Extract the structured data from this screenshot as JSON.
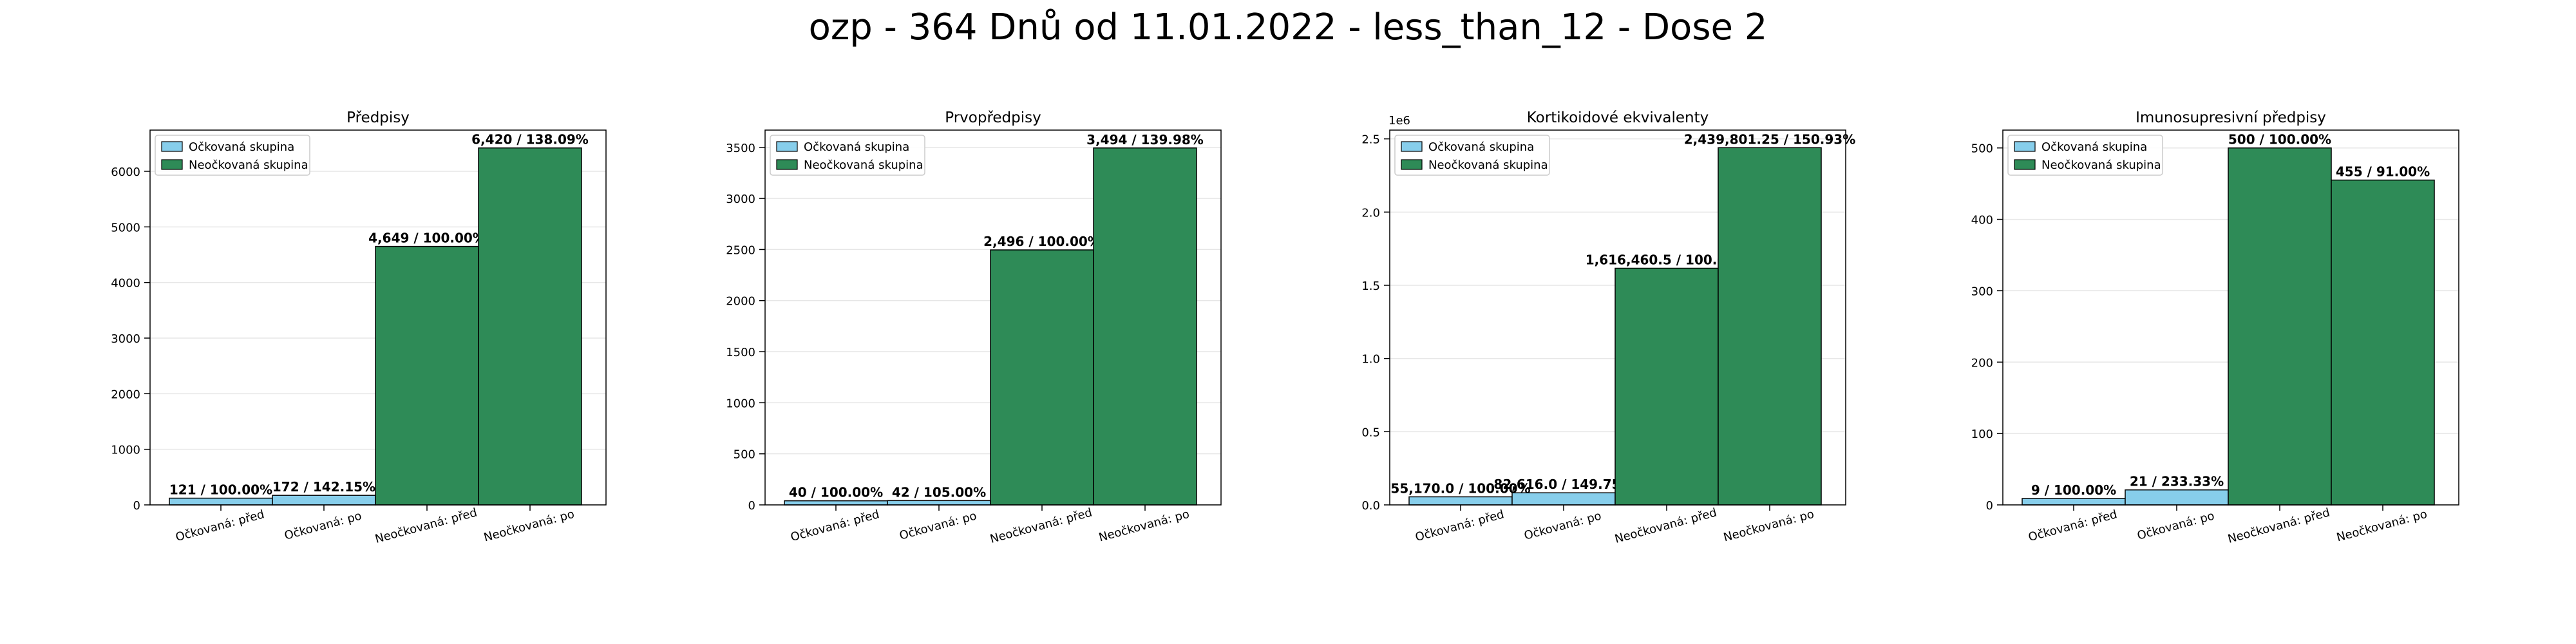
{
  "title": "ozp - 364 Dnů od 11.01.2022 - less_than_12 - Dose 2",
  "colors": {
    "vaccinated": "#87CEEB",
    "unvaccinated": "#2E8B57",
    "edge": "#000000",
    "grid": "#e6e6e6"
  },
  "chart_data": [
    {
      "type": "bar",
      "title": "Předpisy",
      "categories": [
        "Očkovaná: před",
        "Očkovaná: po",
        "Neočkovaná: před",
        "Neočkovaná: po"
      ],
      "values": [
        121,
        172,
        4649,
        6420
      ],
      "labels": [
        "121 / 100.00%",
        "172 / 142.15%",
        "4,649 / 100.00%",
        "6,420 / 138.09%"
      ],
      "groups": [
        "vaccinated",
        "vaccinated",
        "unvaccinated",
        "unvaccinated"
      ],
      "ylim": [
        0,
        6741
      ],
      "yticks": [
        0,
        1000,
        2000,
        3000,
        4000,
        5000,
        6000
      ],
      "yticklabels": [
        "0",
        "1000",
        "2000",
        "3000",
        "4000",
        "5000",
        "6000"
      ],
      "scale_label": "",
      "legend": [
        "Očkovaná skupina",
        "Neočkovaná skupina"
      ],
      "legend_position": "top-left",
      "grid": true
    },
    {
      "type": "bar",
      "title": "Prvopředpisy",
      "categories": [
        "Očkovaná: před",
        "Očkovaná: po",
        "Neočkovaná: před",
        "Neočkovaná: po"
      ],
      "values": [
        40,
        42,
        2496,
        3494
      ],
      "labels": [
        "40 / 100.00%",
        "42 / 105.00%",
        "2,496 / 100.00%",
        "3,494 / 139.98%"
      ],
      "groups": [
        "vaccinated",
        "vaccinated",
        "unvaccinated",
        "unvaccinated"
      ],
      "ylim": [
        0,
        3669
      ],
      "yticks": [
        0,
        500,
        1000,
        1500,
        2000,
        2500,
        3000,
        3500
      ],
      "yticklabels": [
        "0",
        "500",
        "1000",
        "1500",
        "2000",
        "2500",
        "3000",
        "3500"
      ],
      "scale_label": "",
      "legend": [
        "Očkovaná skupina",
        "Neočkovaná skupina"
      ],
      "legend_position": "top-left",
      "grid": true
    },
    {
      "type": "bar",
      "title": "Kortikoidové ekvivalenty",
      "categories": [
        "Očkovaná: před",
        "Očkovaná: po",
        "Neočkovaná: před",
        "Neočkovaná: po"
      ],
      "values": [
        55170.0,
        82616.0,
        1616460.5,
        2439801.25
      ],
      "labels": [
        "55,170.0 / 100.00%",
        "82,616.0 / 149.75%",
        "1,616,460.5 / 100.00%",
        "2,439,801.25 / 150.93%"
      ],
      "groups": [
        "vaccinated",
        "vaccinated",
        "unvaccinated",
        "unvaccinated"
      ],
      "ylim": [
        0,
        2560000
      ],
      "yticks": [
        0,
        500000,
        1000000,
        1500000,
        2000000,
        2500000
      ],
      "yticklabels": [
        "0.0",
        "0.5",
        "1.0",
        "1.5",
        "2.0",
        "2.5"
      ],
      "scale_label": "1e6",
      "legend": [
        "Očkovaná skupina",
        "Neočkovaná skupina"
      ],
      "legend_position": "top-left",
      "grid": true
    },
    {
      "type": "bar",
      "title": "Imunosupresivní předpisy",
      "categories": [
        "Očkovaná: před",
        "Očkovaná: po",
        "Neočkovaná: před",
        "Neočkovaná: po"
      ],
      "values": [
        9,
        21,
        500,
        455
      ],
      "labels": [
        "9 / 100.00%",
        "21 / 233.33%",
        "500 / 100.00%",
        "455 / 91.00%"
      ],
      "groups": [
        "vaccinated",
        "vaccinated",
        "unvaccinated",
        "unvaccinated"
      ],
      "ylim": [
        0,
        525
      ],
      "yticks": [
        0,
        100,
        200,
        300,
        400,
        500
      ],
      "yticklabels": [
        "0",
        "100",
        "200",
        "300",
        "400",
        "500"
      ],
      "scale_label": "",
      "legend": [
        "Očkovaná skupina",
        "Neočkovaná skupina"
      ],
      "legend_position": "top-left",
      "grid": true
    }
  ]
}
